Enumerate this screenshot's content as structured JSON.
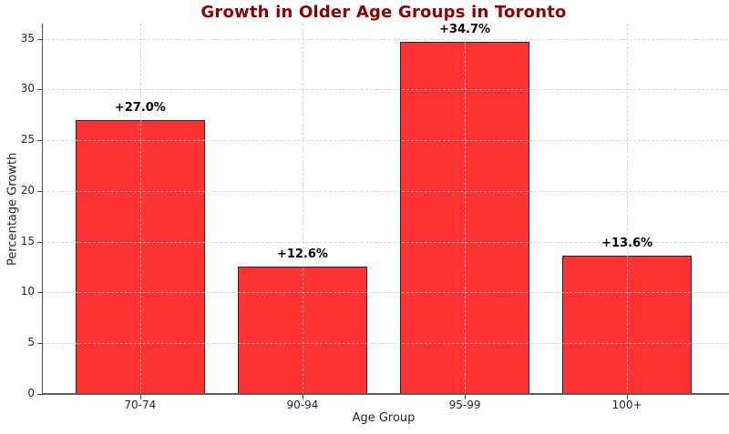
{
  "chart_data": {
    "type": "bar",
    "title": "Growth in Older Age Groups in Toronto",
    "xlabel": "Age Group",
    "ylabel": "Percentage Growth",
    "categories": [
      "70-74",
      "90-94",
      "95-99",
      "100+"
    ],
    "values": [
      27.0,
      12.6,
      34.7,
      13.6
    ],
    "bar_labels": [
      "+27.0%",
      "+12.6%",
      "+34.7%",
      "+13.6%"
    ],
    "yticks": [
      0,
      5,
      10,
      15,
      20,
      25,
      30,
      35
    ],
    "ylim": [
      0,
      36.5
    ],
    "grid": "dashed, both axes, drawn over bars",
    "legend": "none",
    "colors": {
      "bar_fill": "#ff3333",
      "bar_edge": "#262626",
      "title": "#8b0000",
      "tick_text": "#262626",
      "spine": "#4a4a4a",
      "grid": "#cdcdcd",
      "background": "#ffffff"
    }
  }
}
